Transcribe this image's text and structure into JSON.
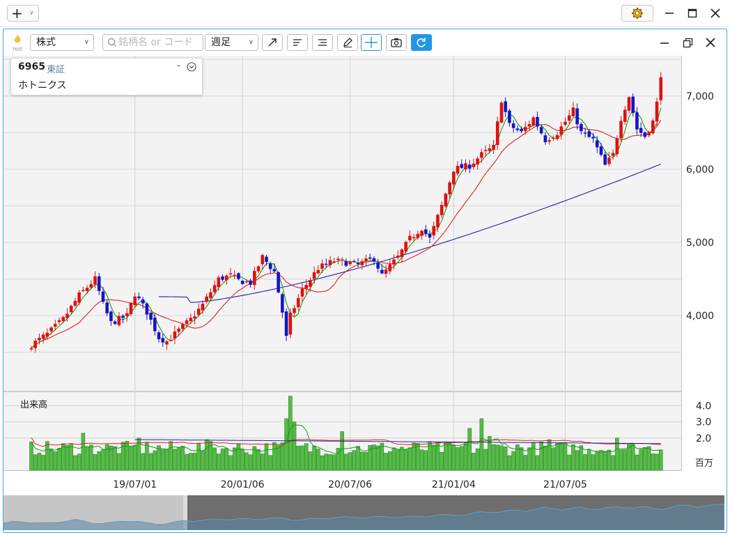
{
  "window": {
    "add_label": "+",
    "icons": [
      "plus-icon",
      "chevron-down-icon",
      "gear-icon",
      "minimize-icon",
      "maximize-icon",
      "close-icon"
    ]
  },
  "toolbar": {
    "hot_label": "Hot",
    "type_select": "株式",
    "search_placeholder": "銘柄名 or コード",
    "period_select": "週足",
    "tools": [
      "trend-line-icon",
      "align-left-icon",
      "align-right-icon",
      "pencil-icon",
      "crosshair-icon",
      "camera-icon",
      "refresh-icon"
    ]
  },
  "stock": {
    "code": "6965",
    "market": "東証",
    "name": "ホトニクス",
    "collapse": "-"
  },
  "volume_panel": {
    "title": "出来高",
    "unit": "百万"
  },
  "colors": {
    "up": "#e01010",
    "down": "#1515c8",
    "ma_short": "#1a9a1a",
    "ma_mid": "#dd2222",
    "ma_long": "#2222aa",
    "volume": "#55bb44",
    "frame": "#3da9d6"
  },
  "chart_data": {
    "type": "candlestick",
    "price_axis": {
      "ticks": [
        "4,000",
        "5,000",
        "6,000",
        "7,000"
      ],
      "range": [
        3250,
        7550
      ]
    },
    "x_ticks": [
      "19/07/01",
      "20/01/06",
      "20/07/06",
      "21/01/04",
      "21/07/05"
    ],
    "volume_axis": {
      "ticks": [
        "2.0",
        "3.0",
        "4.0"
      ],
      "range": [
        0,
        4.8
      ]
    },
    "waypoints": [
      [
        0,
        3600
      ],
      [
        4,
        3750
      ],
      [
        8,
        3950
      ],
      [
        12,
        4280
      ],
      [
        16,
        4500
      ],
      [
        18,
        4150
      ],
      [
        20,
        3900
      ],
      [
        24,
        4000
      ],
      [
        26,
        4300
      ],
      [
        29,
        4050
      ],
      [
        32,
        3700
      ],
      [
        34,
        3650
      ],
      [
        37,
        3800
      ],
      [
        40,
        3950
      ],
      [
        43,
        4150
      ],
      [
        47,
        4500
      ],
      [
        50,
        4550
      ],
      [
        52,
        4480
      ],
      [
        55,
        4450
      ],
      [
        58,
        4800
      ],
      [
        61,
        4600
      ],
      [
        63,
        4050
      ],
      [
        64,
        3700
      ],
      [
        65,
        4000
      ],
      [
        68,
        4350
      ],
      [
        72,
        4650
      ],
      [
        76,
        4750
      ],
      [
        82,
        4700
      ],
      [
        86,
        4780
      ],
      [
        88,
        4550
      ],
      [
        92,
        4800
      ],
      [
        95,
        5050
      ],
      [
        98,
        5200
      ],
      [
        100,
        5050
      ],
      [
        103,
        5500
      ],
      [
        106,
        6000
      ],
      [
        110,
        6050
      ],
      [
        113,
        6200
      ],
      [
        116,
        6300
      ],
      [
        118,
        6950
      ],
      [
        120,
        6600
      ],
      [
        123,
        6500
      ],
      [
        126,
        6700
      ],
      [
        129,
        6400
      ],
      [
        132,
        6500
      ],
      [
        136,
        6800
      ],
      [
        138,
        6500
      ],
      [
        141,
        6400
      ],
      [
        144,
        6050
      ],
      [
        146,
        6200
      ],
      [
        148,
        6700
      ],
      [
        150,
        7000
      ],
      [
        152,
        6550
      ],
      [
        154,
        6450
      ],
      [
        156,
        6650
      ],
      [
        157,
        6900
      ],
      [
        158,
        7300
      ]
    ],
    "ma_long_start": 4180,
    "ma_long_end": 6070
  }
}
